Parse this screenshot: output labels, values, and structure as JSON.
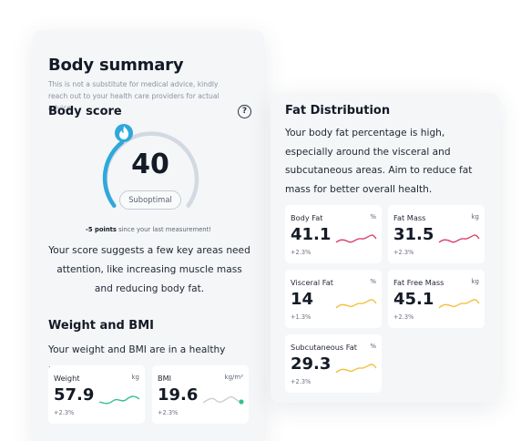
{
  "summary": {
    "title": "Body summary",
    "disclaimer": "This is not a substitute for medical advice, kindly reach out to your health care providers for actual advice.",
    "score_heading": "Body score",
    "help_label": "?",
    "score_value": "40",
    "score_status": "Suboptimal",
    "change_points": "-5 points",
    "change_text": " since your last measurement!",
    "score_message": "Your score suggests a few key areas need attention, like increasing muscle mass and reducing body fat.",
    "weight_heading": "Weight and BMI",
    "weight_message": "Your weight and BMI are in a healthy range.",
    "metrics": [
      {
        "title": "Weight",
        "unit": "kg",
        "value": "57.9",
        "delta": "+2.3%",
        "color": "#38c08a"
      },
      {
        "title": "BMI",
        "unit": "kg/m²",
        "value": "19.6",
        "delta": "+2.3%",
        "color": "#c9cdd3",
        "dot_color": "#38c08a"
      }
    ]
  },
  "fat": {
    "title": "Fat Distribution",
    "message": "Your body fat percentage is high, especially around the visceral and subcutaneous areas. Aim to reduce fat mass for better overall health.",
    "metrics": [
      {
        "title": "Body Fat",
        "unit": "%",
        "value": "41.1",
        "delta": "+2.3%",
        "color": "#d9436b"
      },
      {
        "title": "Fat Mass",
        "unit": "kg",
        "value": "31.5",
        "delta": "+2.3%",
        "color": "#d9436b"
      },
      {
        "title": "Visceral Fat",
        "unit": "%",
        "value": "14",
        "delta": "+1.3%",
        "color": "#f2c140"
      },
      {
        "title": "Fat Free Mass",
        "unit": "kg",
        "value": "45.1",
        "delta": "+2.3%",
        "color": "#f2c140"
      },
      {
        "title": "Subcutaneous Fat",
        "unit": "%",
        "value": "29.3",
        "delta": "+2.3%",
        "color": "#f2c140"
      }
    ]
  },
  "colors": {
    "gauge_fill": "#2fa8dc",
    "gauge_track": "#d2d9e1"
  },
  "icons": [
    "help-icon",
    "flame-icon"
  ]
}
